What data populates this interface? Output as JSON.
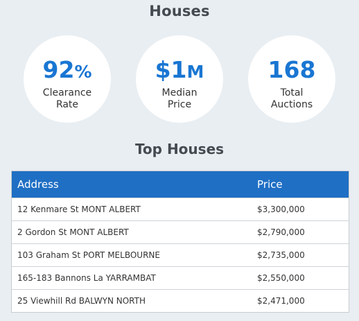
{
  "title": "Houses",
  "stats": [
    {
      "value_main": "92",
      "value_suffix": "%",
      "label_line1": "Clearance",
      "label_line2": "Rate"
    },
    {
      "value_main": "$1",
      "value_suffix": "M",
      "label_line1": "Median",
      "label_line2": "Price"
    },
    {
      "value_main": "168",
      "value_suffix": "",
      "label_line1": "Total",
      "label_line2": "Auctions"
    }
  ],
  "top": {
    "title": "Top Houses",
    "columns": [
      "Address",
      "Price"
    ],
    "rows": [
      {
        "address": "12 Kenmare St MONT ALBERT",
        "price": "$3,300,000"
      },
      {
        "address": "2 Gordon St MONT ALBERT",
        "price": "$2,790,000"
      },
      {
        "address": "103 Graham St PORT MELBOURNE",
        "price": "$2,735,000"
      },
      {
        "address": "165-183 Bannons La YARRAMBAT",
        "price": "$2,550,000"
      },
      {
        "address": "25 Viewhill Rd BALWYN NORTH",
        "price": "$2,471,000"
      }
    ]
  }
}
